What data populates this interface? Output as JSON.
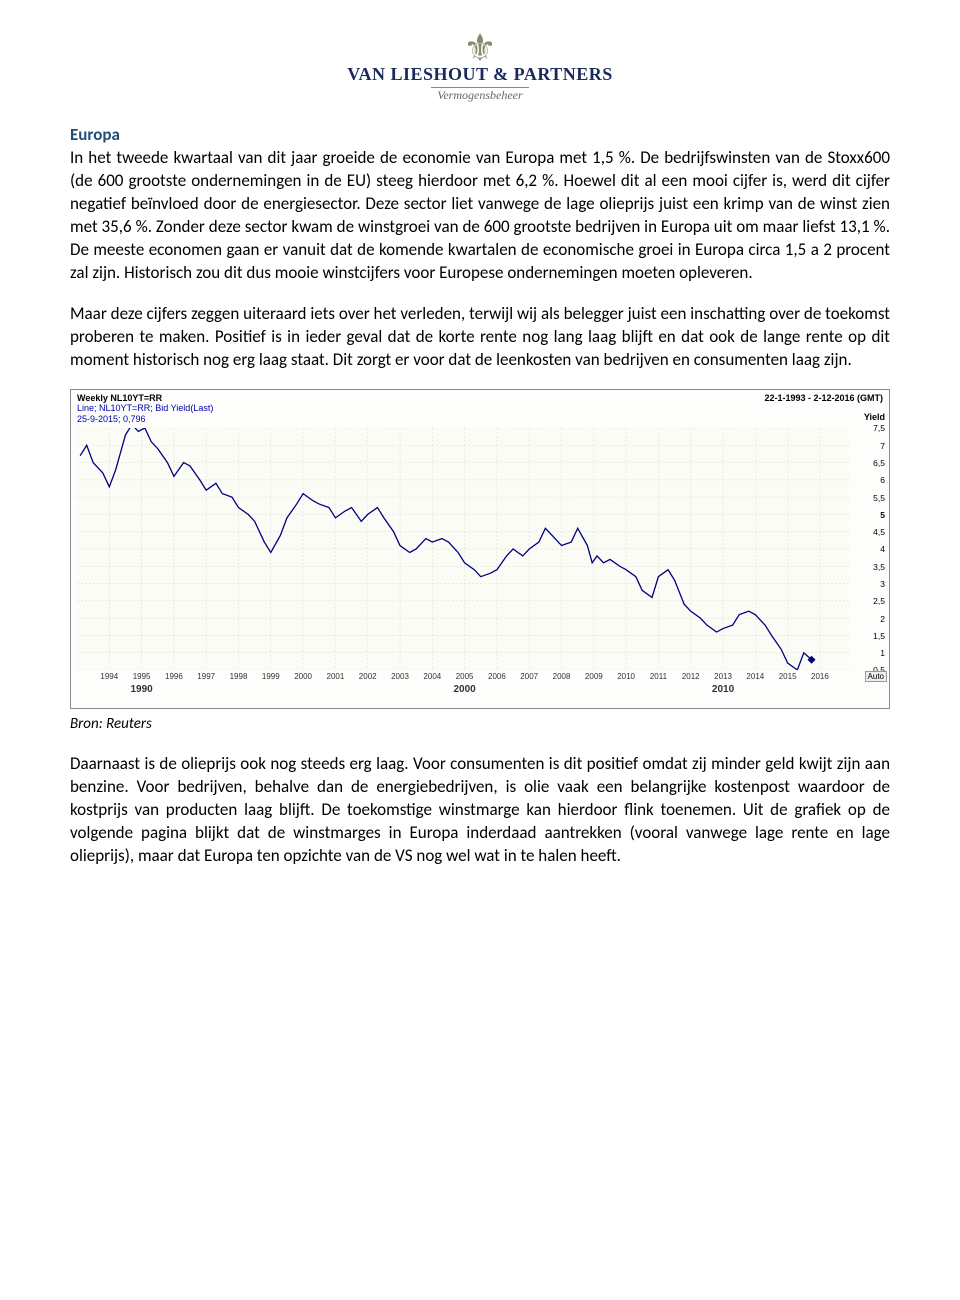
{
  "logo": {
    "company": "VAN LIESHOUT & PARTNERS",
    "sub": "Vermogensbeheer"
  },
  "heading": "Europa",
  "para1": "In het tweede kwartaal van dit jaar groeide de economie van Europa met 1,5 %. De bedrijfswinsten van de Stoxx600 (de 600 grootste ondernemingen in de EU) steeg hierdoor met 6,2 %. Hoewel dit al een mooi cijfer is, werd dit cijfer negatief beïnvloed door de energiesector. Deze sector liet vanwege de lage olieprijs juist een krimp van de winst zien met 35,6 %. Zonder deze sector kwam de winstgroei van de 600 grootste bedrijven in Europa uit om maar liefst 13,1 %. De meeste economen gaan er vanuit dat de komende kwartalen de economische groei in Europa circa 1,5 a 2 procent zal zijn. Historisch zou dit dus mooie winstcijfers voor Europese ondernemingen moeten opleveren.",
  "para2": "Maar deze cijfers zeggen uiteraard iets over het verleden, terwijl wij als belegger juist een inschatting over de toekomst proberen te maken. Positief is in ieder geval dat de korte rente nog lang laag blijft en dat ook de lange rente op dit moment historisch nog erg laag staat. Dit zorgt er voor dat de leenkosten van bedrijven en consumenten laag zijn.",
  "chart": {
    "title_left": "Weekly NL10YT=RR",
    "title_right": "22-1-1993 - 2-12-2016 (GMT)",
    "sub1": "Line; NL10YT=RR; Bid Yield(Last)",
    "sub2": "25-9-2015; 0,796",
    "y_axis_title": "Yield",
    "auto_label": "Auto",
    "line_color": "#000080",
    "grid_color": "#d8d8c8",
    "bg_color": "#fcfcf7",
    "ymin": 0.5,
    "ymax": 7.5,
    "yticks": [
      0.5,
      1,
      1.5,
      2,
      2.5,
      3,
      3.5,
      4,
      4.5,
      5,
      5.5,
      6,
      6.5,
      7,
      7.5
    ],
    "ytick_labels": [
      "0,5",
      "1",
      "1,5",
      "2",
      "2,5",
      "3",
      "3,5",
      "4",
      "4,5",
      "5",
      "5,5",
      "6",
      "6,5",
      "7",
      "7,5"
    ],
    "bold_yticks": [
      5
    ],
    "years": [
      "1994",
      "1995",
      "1996",
      "1997",
      "1998",
      "1999",
      "2000",
      "2001",
      "2002",
      "2003",
      "2004",
      "2005",
      "2006",
      "2007",
      "2008",
      "2009",
      "2010",
      "2011",
      "2012",
      "2013",
      "2014",
      "2015",
      "2016"
    ],
    "decades": [
      {
        "label": "1990",
        "at": "1995"
      },
      {
        "label": "2000",
        "at": "2005"
      },
      {
        "label": "2010",
        "at": "2013"
      }
    ],
    "series": [
      [
        1993.1,
        6.7
      ],
      [
        1993.3,
        7.0
      ],
      [
        1993.5,
        6.5
      ],
      [
        1993.8,
        6.2
      ],
      [
        1994.0,
        5.8
      ],
      [
        1994.2,
        6.3
      ],
      [
        1994.5,
        7.3
      ],
      [
        1994.7,
        7.6
      ],
      [
        1994.9,
        7.4
      ],
      [
        1995.1,
        7.5
      ],
      [
        1995.3,
        7.1
      ],
      [
        1995.5,
        6.9
      ],
      [
        1995.8,
        6.5
      ],
      [
        1996.0,
        6.1
      ],
      [
        1996.3,
        6.5
      ],
      [
        1996.5,
        6.4
      ],
      [
        1996.8,
        6.0
      ],
      [
        1997.0,
        5.7
      ],
      [
        1997.3,
        5.9
      ],
      [
        1997.5,
        5.6
      ],
      [
        1997.8,
        5.5
      ],
      [
        1998.0,
        5.2
      ],
      [
        1998.3,
        5.0
      ],
      [
        1998.5,
        4.8
      ],
      [
        1998.8,
        4.2
      ],
      [
        1999.0,
        3.9
      ],
      [
        1999.3,
        4.4
      ],
      [
        1999.5,
        4.9
      ],
      [
        1999.8,
        5.3
      ],
      [
        2000.0,
        5.6
      ],
      [
        2000.3,
        5.4
      ],
      [
        2000.5,
        5.3
      ],
      [
        2000.8,
        5.2
      ],
      [
        2001.0,
        4.9
      ],
      [
        2001.3,
        5.1
      ],
      [
        2001.5,
        5.2
      ],
      [
        2001.8,
        4.8
      ],
      [
        2002.0,
        5.0
      ],
      [
        2002.3,
        5.2
      ],
      [
        2002.5,
        4.9
      ],
      [
        2002.8,
        4.5
      ],
      [
        2003.0,
        4.1
      ],
      [
        2003.3,
        3.9
      ],
      [
        2003.5,
        4.0
      ],
      [
        2003.8,
        4.3
      ],
      [
        2004.0,
        4.2
      ],
      [
        2004.3,
        4.3
      ],
      [
        2004.5,
        4.2
      ],
      [
        2004.8,
        3.9
      ],
      [
        2005.0,
        3.6
      ],
      [
        2005.3,
        3.4
      ],
      [
        2005.5,
        3.2
      ],
      [
        2005.8,
        3.3
      ],
      [
        2006.0,
        3.4
      ],
      [
        2006.3,
        3.8
      ],
      [
        2006.5,
        4.0
      ],
      [
        2006.8,
        3.8
      ],
      [
        2007.0,
        4.0
      ],
      [
        2007.3,
        4.2
      ],
      [
        2007.5,
        4.6
      ],
      [
        2007.8,
        4.3
      ],
      [
        2008.0,
        4.1
      ],
      [
        2008.3,
        4.2
      ],
      [
        2008.5,
        4.6
      ],
      [
        2008.8,
        4.1
      ],
      [
        2008.95,
        3.6
      ],
      [
        2009.1,
        3.8
      ],
      [
        2009.3,
        3.6
      ],
      [
        2009.5,
        3.7
      ],
      [
        2009.8,
        3.5
      ],
      [
        2010.0,
        3.4
      ],
      [
        2010.3,
        3.2
      ],
      [
        2010.5,
        2.8
      ],
      [
        2010.8,
        2.6
      ],
      [
        2011.0,
        3.2
      ],
      [
        2011.3,
        3.4
      ],
      [
        2011.5,
        3.1
      ],
      [
        2011.8,
        2.4
      ],
      [
        2012.0,
        2.2
      ],
      [
        2012.3,
        2.0
      ],
      [
        2012.5,
        1.8
      ],
      [
        2012.8,
        1.6
      ],
      [
        2013.0,
        1.7
      ],
      [
        2013.3,
        1.8
      ],
      [
        2013.5,
        2.1
      ],
      [
        2013.8,
        2.2
      ],
      [
        2014.0,
        2.1
      ],
      [
        2014.3,
        1.8
      ],
      [
        2014.5,
        1.5
      ],
      [
        2014.8,
        1.1
      ],
      [
        2015.0,
        0.7
      ],
      [
        2015.3,
        0.5
      ],
      [
        2015.5,
        1.0
      ],
      [
        2015.74,
        0.796
      ]
    ]
  },
  "caption": "Bron: Reuters",
  "para3": "Daarnaast is de olieprijs ook nog steeds erg laag. Voor consumenten is dit positief omdat zij minder geld kwijt zijn aan benzine. Voor bedrijven, behalve dan de energiebedrijven, is olie vaak een belangrijke kostenpost waardoor de kostprijs van producten laag blijft. De toekomstige winstmarge kan hierdoor flink toenemen. Uit de grafiek op de volgende pagina blijkt dat de winstmarges in Europa inderdaad aantrekken (vooral vanwege lage rente en lage olieprijs), maar dat Europa ten opzichte van de VS nog wel wat in te halen heeft."
}
